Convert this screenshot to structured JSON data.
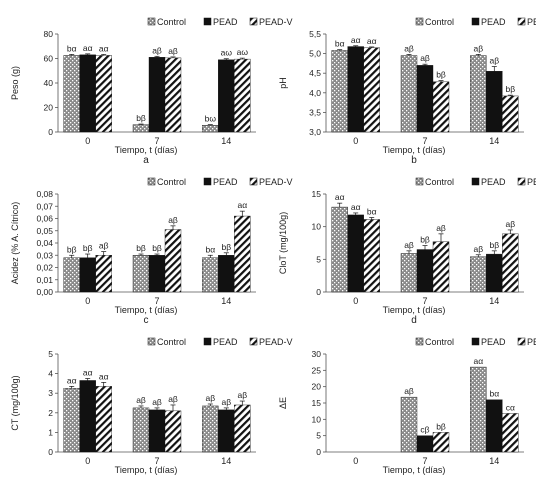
{
  "legend": {
    "control": "Control",
    "pead": "PEAD",
    "peadv": "PEAD-V"
  },
  "chart_data": [
    {
      "type": "bar",
      "panel_label": "a",
      "ylabel": "Peso (g)",
      "xlabel": "Tiempo, t (días)",
      "categories": [
        "0",
        "7",
        "14"
      ],
      "ylim": [
        0,
        80
      ],
      "yticks": [
        "0",
        "20",
        "40",
        "60",
        "80"
      ],
      "series": [
        {
          "name": "Control",
          "values": [
            62.5,
            6.0,
            5.5
          ],
          "errors": [
            0.8,
            0.5,
            0.5
          ],
          "labels": [
            "bα",
            "bβ",
            "bω"
          ]
        },
        {
          "name": "PEAD",
          "values": [
            63.0,
            61.0,
            59.0
          ],
          "errors": [
            0.8,
            0.8,
            0.8
          ],
          "labels": [
            "aα",
            "aβ",
            "aω"
          ]
        },
        {
          "name": "PEAD-V",
          "values": [
            62.5,
            60.5,
            59.5
          ],
          "errors": [
            0.8,
            0.8,
            0.8
          ],
          "labels": [
            "aα",
            "aβ",
            "aω"
          ]
        }
      ]
    },
    {
      "type": "bar",
      "panel_label": "b",
      "ylabel": "pH",
      "xlabel": "Tiempo,  t (días)",
      "categories": [
        "0",
        "7",
        "14"
      ],
      "ylim": [
        3.0,
        5.5
      ],
      "yticks": [
        "3,0",
        "3,5",
        "4,0",
        "4,5",
        "5,0",
        "5,5"
      ],
      "series": [
        {
          "name": "Control",
          "values": [
            5.08,
            4.95,
            4.95
          ],
          "errors": [
            0.02,
            0.03,
            0.03
          ],
          "labels": [
            "bα",
            "aβ",
            "aβ"
          ]
        },
        {
          "name": "PEAD",
          "values": [
            5.18,
            4.7,
            4.55
          ],
          "errors": [
            0.02,
            0.03,
            0.12
          ],
          "labels": [
            "aα",
            "aβ",
            "aβ"
          ]
        },
        {
          "name": "PEAD-V",
          "values": [
            5.15,
            4.28,
            3.92
          ],
          "errors": [
            0.02,
            0.03,
            0.02
          ],
          "labels": [
            "aα",
            "bβ",
            "bβ"
          ]
        }
      ]
    },
    {
      "type": "bar",
      "panel_label": "c",
      "ylabel": "Acidez (% A. Cítrico)",
      "xlabel": "Tiempo, t (días)",
      "categories": [
        "0",
        "7",
        "14"
      ],
      "ylim": [
        0,
        0.08
      ],
      "yticks": [
        "0,00",
        "0,01",
        "0,02",
        "0,03",
        "0,04",
        "0,05",
        "0,06",
        "0,07",
        "0,08"
      ],
      "series": [
        {
          "name": "Control",
          "values": [
            0.028,
            0.03,
            0.028
          ],
          "errors": [
            0.002,
            0.001,
            0.002
          ],
          "labels": [
            "bβ",
            "bβ",
            "bα"
          ]
        },
        {
          "name": "PEAD",
          "values": [
            0.028,
            0.03,
            0.03
          ],
          "errors": [
            0.003,
            0.001,
            0.002
          ],
          "labels": [
            "bβ",
            "bβ",
            "bβ"
          ]
        },
        {
          "name": "PEAD-V",
          "values": [
            0.03,
            0.051,
            0.062
          ],
          "errors": [
            0.003,
            0.003,
            0.004
          ],
          "labels": [
            "aβ",
            "aβ",
            "aα"
          ]
        }
      ]
    },
    {
      "type": "bar",
      "panel_label": "d",
      "ylabel": "CloT  (mg/100g)",
      "xlabel": "Tiempo, t (días)",
      "categories": [
        "0",
        "7",
        "14"
      ],
      "ylim": [
        0,
        15
      ],
      "yticks": [
        "0",
        "5",
        "10",
        "15"
      ],
      "series": [
        {
          "name": "Control",
          "values": [
            13.0,
            5.9,
            5.4
          ],
          "errors": [
            0.6,
            0.4,
            0.3
          ],
          "labels": [
            "aα",
            "aβ",
            "aβ"
          ]
        },
        {
          "name": "PEAD",
          "values": [
            11.8,
            6.5,
            5.8
          ],
          "errors": [
            0.3,
            0.6,
            0.5
          ],
          "labels": [
            "aα",
            "bβ",
            "bβ"
          ]
        },
        {
          "name": "PEAD-V",
          "values": [
            11.1,
            7.7,
            8.9
          ],
          "errors": [
            0.3,
            1.2,
            0.6
          ],
          "labels": [
            "bα",
            "aβ",
            "aβ"
          ]
        }
      ]
    },
    {
      "type": "bar",
      "panel_label": "e",
      "ylabel": "CT (mg/100g)",
      "xlabel": "Tiempo, t (días)",
      "categories": [
        "0",
        "7",
        "14"
      ],
      "ylim": [
        0,
        5
      ],
      "yticks": [
        "0",
        "1",
        "2",
        "3",
        "4",
        "5"
      ],
      "series": [
        {
          "name": "Control",
          "values": [
            3.25,
            2.25,
            2.35
          ],
          "errors": [
            0.1,
            0.1,
            0.1
          ],
          "labels": [
            "aα",
            "aβ",
            "aβ"
          ]
        },
        {
          "name": "PEAD",
          "values": [
            3.65,
            2.15,
            2.15
          ],
          "errors": [
            0.1,
            0.1,
            0.1
          ],
          "labels": [
            "aα",
            "aβ",
            "aβ"
          ]
        },
        {
          "name": "PEAD-V",
          "values": [
            3.35,
            2.1,
            2.4
          ],
          "errors": [
            0.2,
            0.3,
            0.2
          ],
          "labels": [
            "aα",
            "aβ",
            "aβ"
          ]
        }
      ]
    },
    {
      "type": "bar",
      "panel_label": "f",
      "ylabel": "ΔE",
      "xlabel": "Tiempo, t (días)",
      "categories": [
        "0",
        "7",
        "14"
      ],
      "ylim": [
        0,
        30
      ],
      "yticks": [
        "0",
        "5",
        "10",
        "15",
        "20",
        "25",
        "30"
      ],
      "series": [
        {
          "name": "Control",
          "values": [
            0,
            16.8,
            26.0
          ],
          "errors": [
            0,
            0,
            0
          ],
          "labels": [
            "",
            "aβ",
            "aα"
          ]
        },
        {
          "name": "PEAD",
          "values": [
            0,
            5.0,
            16.0
          ],
          "errors": [
            0,
            0,
            0
          ],
          "labels": [
            "",
            "cβ",
            "bα"
          ]
        },
        {
          "name": "PEAD-V",
          "values": [
            0,
            6.0,
            11.8
          ],
          "errors": [
            0,
            0,
            0
          ],
          "labels": [
            "",
            "bβ",
            "cα"
          ]
        }
      ]
    }
  ]
}
